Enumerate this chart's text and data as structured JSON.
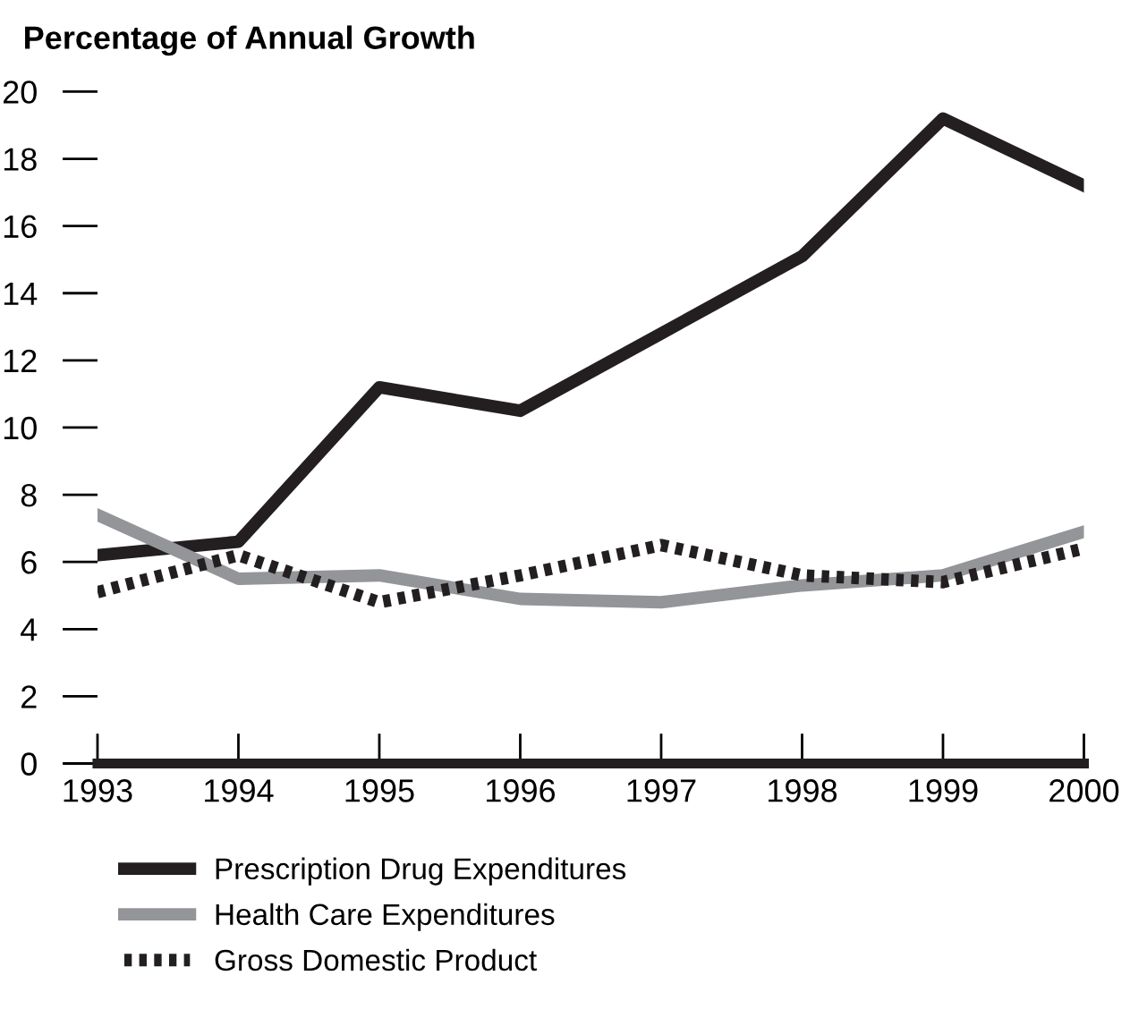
{
  "chart_data": {
    "type": "line",
    "title": "Percentage of Annual Growth",
    "categories": [
      "1993",
      "1994",
      "1995",
      "1996",
      "1997",
      "1998",
      "1999",
      "2000"
    ],
    "series": [
      {
        "name": "Prescription Drug Expenditures",
        "color": "#231f20",
        "line_style": "solid",
        "values": [
          6.2,
          6.6,
          11.2,
          10.5,
          12.8,
          15.1,
          19.2,
          17.2
        ]
      },
      {
        "name": "Health Care Expenditures",
        "color": "#939598",
        "line_style": "solid",
        "values": [
          7.4,
          5.5,
          5.6,
          4.9,
          4.8,
          5.3,
          5.6,
          6.9
        ]
      },
      {
        "name": "Gross Domestic Product",
        "color": "#231f20",
        "line_style": "dotted",
        "values": [
          5.1,
          6.2,
          4.8,
          5.6,
          6.5,
          5.6,
          5.4,
          6.4
        ]
      }
    ],
    "ylim": [
      0,
      20
    ],
    "yticks": [
      0,
      2,
      4,
      6,
      8,
      10,
      12,
      14,
      16,
      18,
      20
    ],
    "grid": false,
    "legend": "bottom",
    "marker": "none"
  }
}
